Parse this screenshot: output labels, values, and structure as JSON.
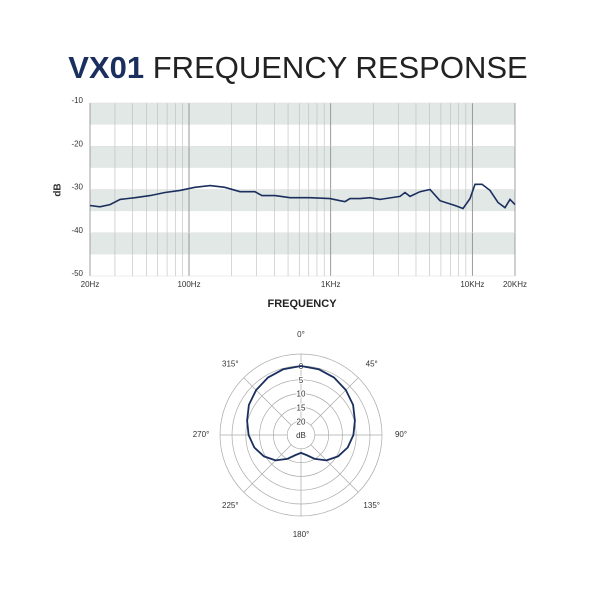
{
  "header": {
    "model": "VX01",
    "title": "FREQUENCY RESPONSE"
  },
  "chart_data": [
    {
      "type": "line",
      "x_label": "FREQUENCY",
      "y_label": "dB",
      "xscale": "log",
      "color": "#1b2f5e",
      "band_color": "#e2e8e5",
      "grid": true,
      "x": [
        20,
        23.5,
        27.7,
        32.6,
        41.6,
        53,
        67.7,
        86.4,
        110,
        141,
        179,
        229,
        292,
        327,
        405,
        516,
        715,
        989,
        1164,
        1262,
        1369,
        1611,
        1895,
        2229,
        3085,
        3346,
        3630,
        4271,
        5024,
        5910,
        7544,
        8590,
        9625,
        10440,
        11700,
        13320,
        15180,
        17000,
        18440,
        20000
      ],
      "values": [
        -33.7,
        -34,
        -33.5,
        -32.3,
        -31.9,
        -31.4,
        -30.7,
        -30.2,
        -29.5,
        -29.1,
        -29.5,
        -30.5,
        -30.5,
        -31.4,
        -31.4,
        -31.9,
        -31.9,
        -32.1,
        -32.6,
        -32.8,
        -32.1,
        -32.1,
        -31.9,
        -32.3,
        -31.6,
        -30.7,
        -31.6,
        -30.5,
        -30,
        -32.6,
        -33.7,
        -34.4,
        -32.1,
        -28.8,
        -28.8,
        -30.2,
        -33,
        -34.2,
        -32.3,
        -33.5
      ],
      "xlim": [
        20,
        20000
      ],
      "xticks": [
        {
          "value": 20,
          "label": "20Hz"
        },
        {
          "value": 100,
          "label": "100Hz"
        },
        {
          "value": 1000,
          "label": "1KHz"
        },
        {
          "value": 10000,
          "label": "10KHz"
        },
        {
          "value": 20000,
          "label": "20KHz"
        }
      ],
      "ylim": [
        -50,
        -10
      ],
      "yticks": [
        -10,
        -20,
        -30,
        -40,
        -50
      ]
    },
    {
      "type": "polar",
      "color": "#1b2f5e",
      "r_label": "dB",
      "theta": [
        0,
        15,
        30,
        45,
        60,
        75,
        90,
        105,
        120,
        135,
        150,
        165,
        180,
        195,
        210,
        225,
        240,
        255,
        270,
        285,
        300,
        315,
        330,
        345
      ],
      "values": [
        0,
        0.3,
        1,
        2,
        3.2,
        4.8,
        6,
        7.5,
        9.5,
        12,
        15,
        17.5,
        18.5,
        17.5,
        15,
        12,
        9.5,
        7.5,
        6,
        4.8,
        3.2,
        2,
        1,
        0.3
      ],
      "rlim": [
        25,
        0
      ],
      "rticks": [
        0,
        5,
        10,
        15,
        20
      ],
      "thetaticks": [
        {
          "value": 0,
          "label": "0°"
        },
        {
          "value": 45,
          "label": "45°"
        },
        {
          "value": 90,
          "label": "90°"
        },
        {
          "value": 135,
          "label": "135°"
        },
        {
          "value": 180,
          "label": "180°"
        },
        {
          "value": 225,
          "label": "225°"
        },
        {
          "value": 270,
          "label": "270°"
        },
        {
          "value": 315,
          "label": "315°"
        }
      ]
    }
  ]
}
